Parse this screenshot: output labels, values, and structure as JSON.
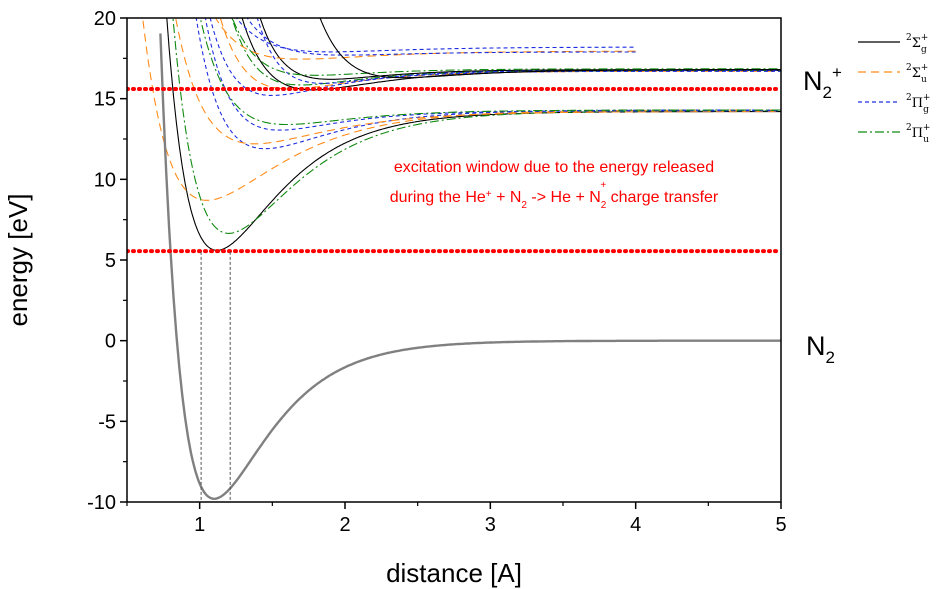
{
  "chart_data": {
    "type": "line",
    "xlabel": "distance  [A]",
    "ylabel": "energy  [eV]",
    "xlim": [
      0.5,
      5
    ],
    "ylim": [
      -10,
      20
    ],
    "x_ticks": [
      "1",
      "2",
      "3",
      "4",
      "5"
    ],
    "y_ticks": [
      "-10",
      "-5",
      "0",
      "5",
      "10",
      "15",
      "20"
    ],
    "grid": false,
    "legend_position": "top-right, outside plot",
    "legend": [
      {
        "sym": "Σ",
        "sub": "g",
        "color": "#000000",
        "dash": ""
      },
      {
        "sym": "Σ",
        "sub": "u",
        "color": "#ff8c1a",
        "dash": "8,5"
      },
      {
        "sym": "Π",
        "sub": "g",
        "color": "#1f2ee0",
        "dash": "4,3"
      },
      {
        "sym": "Π",
        "sub": "u",
        "color": "#108a10",
        "dash": "9,3,2,3"
      }
    ],
    "labels": {
      "ion": "N",
      "ion_sub": "2",
      "ion_sup": "+",
      "neutral": "N",
      "neutral_sub": "2"
    },
    "annotation": {
      "line1": "excitation window due to the energy released",
      "line2_a": "during the He",
      "line2_sup1": "+",
      "line2_b": " + N",
      "line2_sub1": "2",
      "line2_c": " -> He + N",
      "line2_sub2": "2",
      "line2_sup2": "+",
      "line2_d": " charge transfer"
    },
    "window_lines": [
      {
        "y": 15.6,
        "color": "#ff0000"
      },
      {
        "y": 5.55,
        "color": "#ff0000"
      }
    ],
    "vertical_markers": [
      1.01,
      1.21
    ],
    "ground_state": {
      "name": "N2",
      "color": "#808080",
      "De": 9.8,
      "a": 2.7,
      "re": 1.1,
      "offset": 0
    },
    "series": [
      {
        "color": "#000000",
        "dash": "",
        "De": 8.6,
        "a": 2.4,
        "re": 1.12,
        "offset": 14.2
      },
      {
        "color": "#108a10",
        "dash": "9,3,2,3",
        "De": 7.6,
        "a": 2.2,
        "re": 1.2,
        "offset": 14.25
      },
      {
        "color": "#ff8c1a",
        "dash": "8,5",
        "De": 5.6,
        "a": 2.0,
        "re": 1.05,
        "offset": 14.3
      },
      {
        "color": "#1f2ee0",
        "dash": "4,3",
        "De": 2.4,
        "a": 2.2,
        "re": 1.45,
        "offset": 14.3
      },
      {
        "color": "#ff8c1a",
        "dash": "8,5",
        "De": 2.0,
        "a": 2.0,
        "re": 1.38,
        "offset": 14.2
      },
      {
        "color": "#1f2ee0",
        "dash": "4,3",
        "De": 1.2,
        "a": 2.4,
        "re": 1.55,
        "offset": 14.25
      },
      {
        "color": "#108a10",
        "dash": "9,3,2,3",
        "De": 0.9,
        "a": 2.2,
        "re": 1.6,
        "offset": 14.3
      },
      {
        "color": "#000000",
        "dash": "",
        "De": 1.2,
        "a": 2.2,
        "re": 1.78,
        "offset": 16.75
      },
      {
        "color": "#ff8c1a",
        "dash": "8,5",
        "De": 1.1,
        "a": 2.3,
        "re": 1.62,
        "offset": 16.7
      },
      {
        "color": "#1f2ee0",
        "dash": "4,3",
        "De": 1.5,
        "a": 2.4,
        "re": 1.5,
        "offset": 16.7
      },
      {
        "color": "#108a10",
        "dash": "9,3,2,3",
        "De": 0.9,
        "a": 2.4,
        "re": 1.7,
        "offset": 16.75
      },
      {
        "color": "#000000",
        "dash": "",
        "De": 0.6,
        "a": 2.6,
        "re": 1.9,
        "offset": 16.8
      },
      {
        "color": "#1f2ee0",
        "dash": "4,3",
        "De": 0.8,
        "a": 2.6,
        "re": 1.85,
        "offset": 16.75
      },
      {
        "color": "#ff8c1a",
        "dash": "8,5",
        "De": 0.5,
        "a": 2.0,
        "re": 1.7,
        "offset": 17.95
      },
      {
        "color": "#1f2ee0",
        "dash": "4,3",
        "De": 0.3,
        "a": 2.0,
        "re": 1.9,
        "offset": 18.2
      },
      {
        "color": "#108a10",
        "dash": "9,3,2,3",
        "De": 0.4,
        "a": 2.4,
        "re": 1.8,
        "offset": 16.85
      },
      {
        "color": "#1f2ee0",
        "dash": "4,3",
        "De": 0.2,
        "a": 2.2,
        "re": 2.0,
        "offset": 17.9
      },
      {
        "color": "#000000",
        "dash": "",
        "De": 0.5,
        "a": 2.3,
        "re": 2.4,
        "offset": 16.8
      }
    ]
  }
}
